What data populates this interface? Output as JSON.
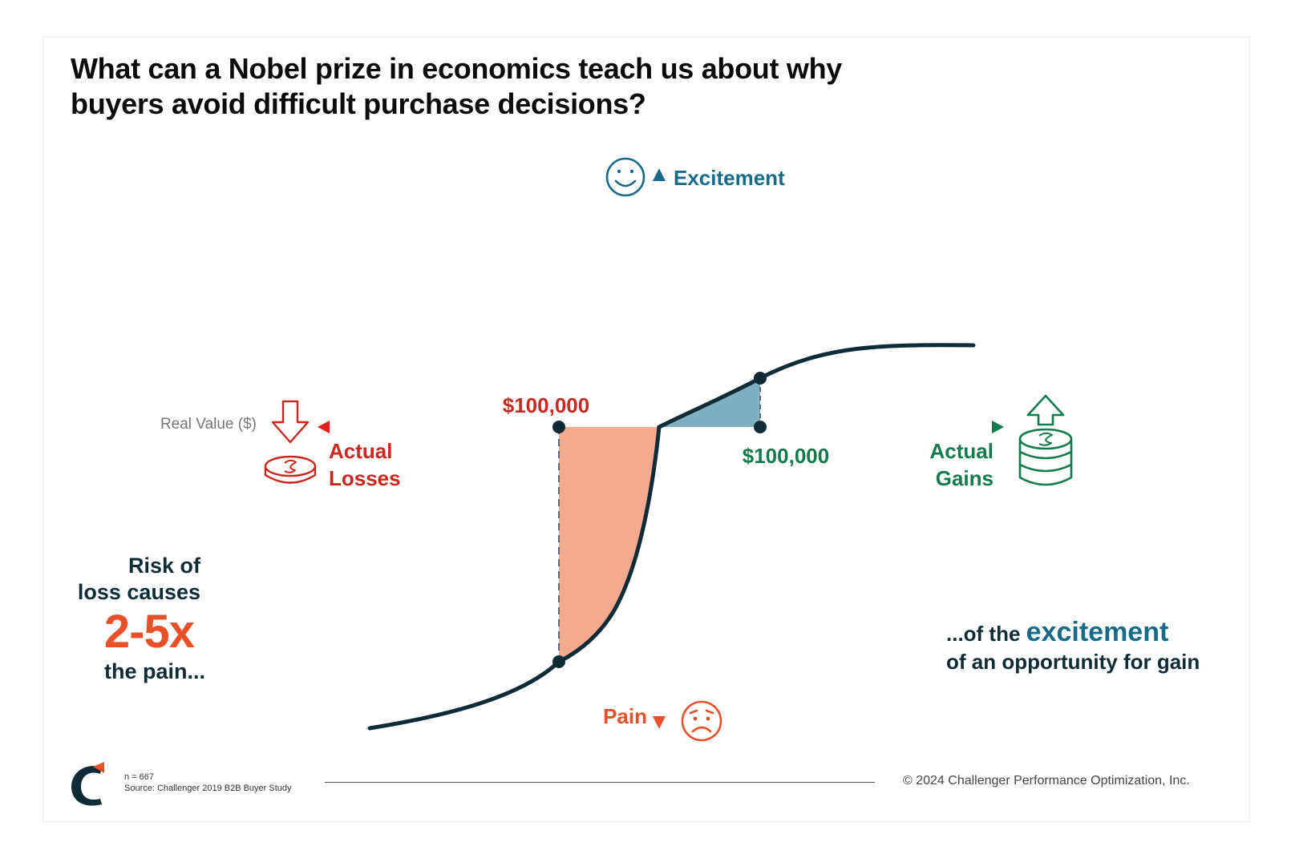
{
  "title": {
    "line1": "What can a Nobel prize in economics teach us about why",
    "line2": "buyers avoid difficult purchase decisions?"
  },
  "axes": {
    "y_positive_label": "Excitement",
    "y_negative_label": "Pain",
    "x_label": "Real Value ($)",
    "x_negative_label_line1": "Actual",
    "x_negative_label_line2": "Losses",
    "x_positive_label_line1": "Actual",
    "x_positive_label_line2": "Gains"
  },
  "markers": {
    "loss_value": "$100,000",
    "gain_value": "$100,000"
  },
  "left_callout": {
    "line1": "Risk of",
    "line2": "loss causes",
    "highlight": "2-5x",
    "line3": "the pain..."
  },
  "right_callout": {
    "prefix": "...of the",
    "highlight": "excitement",
    "line2": "of an opportunity for gain"
  },
  "footer": {
    "n": "n = 667",
    "source": "Source: Challenger 2019 B2B Buyer Study",
    "copyright": "© 2024 Challenger Performance Optimization, Inc."
  },
  "icons": [
    "smile-icon",
    "worried-face-icon",
    "coin-down-arrow-icon",
    "coin-stack-up-arrow-icon",
    "challenger-logo-icon"
  ],
  "colors": {
    "excitement": "#176b88",
    "pain": "#e8502a",
    "losses": "#c8281e",
    "gains": "#127a4b",
    "loss_area": "#f5a98f",
    "gain_area": "#7fafc2",
    "curve": "#0f2b36"
  }
}
